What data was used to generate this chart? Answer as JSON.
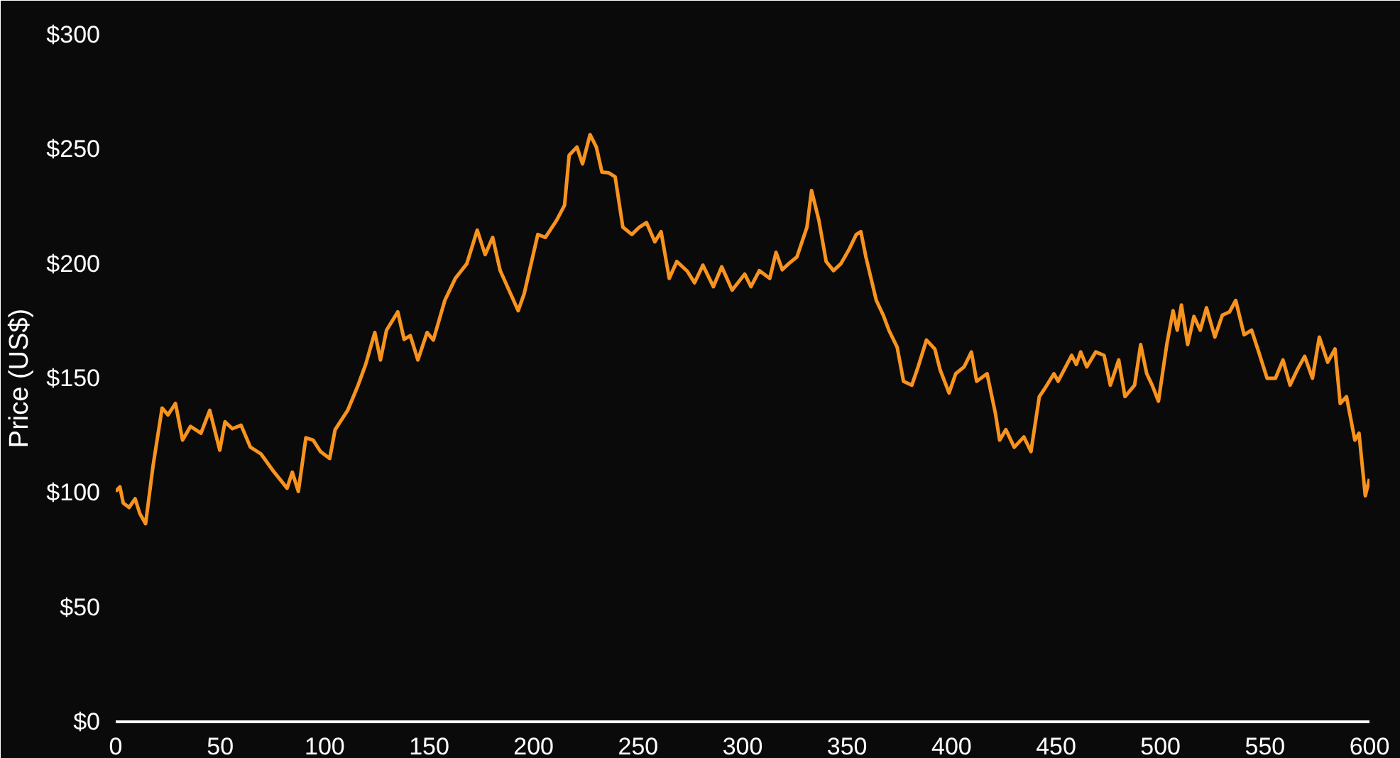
{
  "chart_data": {
    "type": "line",
    "ylabel": "Price (US$)",
    "xlim": [
      0,
      600
    ],
    "ylim": [
      0,
      300
    ],
    "xticks": [
      0,
      50,
      100,
      150,
      200,
      250,
      300,
      350,
      400,
      450,
      500,
      550,
      600
    ],
    "yticks": [
      {
        "value": 0,
        "label": "$0"
      },
      {
        "value": 50,
        "label": "$50"
      },
      {
        "value": 100,
        "label": "$100"
      },
      {
        "value": 150,
        "label": "$150"
      },
      {
        "value": 200,
        "label": "$200"
      },
      {
        "value": 250,
        "label": "$250"
      },
      {
        "value": 300,
        "label": "$300"
      }
    ],
    "grid": false,
    "marker": "none",
    "line_style": "solid",
    "x": [
      0,
      2,
      3.6,
      6.4,
      9.3,
      11.5,
      14.3,
      17.9,
      22.2,
      25,
      28.6,
      32,
      35.8,
      40.8,
      45,
      49.8,
      52.3,
      55.8,
      60,
      64.4,
      69.5,
      75,
      82,
      84.5,
      87.4,
      91,
      94.5,
      98,
      102.4,
      105,
      111,
      116,
      119.6,
      124,
      126.7,
      129.6,
      135,
      138,
      141,
      144.6,
      149,
      152,
      157.5,
      162.5,
      168,
      173,
      176.8,
      180.4,
      184,
      192.6,
      195.5,
      202,
      205.6,
      211,
      214.8,
      217,
      220.7,
      223.4,
      227,
      230,
      232.7,
      236,
      239,
      242.7,
      247,
      250.6,
      254,
      258,
      261,
      264.9,
      268.5,
      273.5,
      277,
      281,
      286,
      290,
      295,
      301,
      304,
      308,
      313,
      316,
      319,
      322,
      326,
      330.8,
      333,
      336.5,
      340,
      343.5,
      347,
      350.8,
      354.4,
      356.6,
      359,
      364,
      367.3,
      370,
      374,
      377,
      381,
      384,
      388,
      392,
      394.5,
      398.8,
      402,
      406,
      409.5,
      412,
      417,
      421,
      423,
      426,
      430,
      434.6,
      438,
      442,
      444.6,
      449,
      451,
      454.6,
      457.5,
      459.7,
      461.8,
      464.7,
      469,
      473,
      476,
      480,
      483,
      487.6,
      490.5,
      493.4,
      496,
      499,
      503,
      506,
      508,
      510,
      513,
      516,
      519,
      522,
      526,
      529.6,
      533,
      536,
      540,
      543.6,
      547,
      551,
      555,
      558.6,
      562,
      565.6,
      569,
      572.7,
      576,
      580,
      583.5,
      586,
      589,
      593,
      595,
      598,
      600
    ],
    "series": [
      {
        "color": "#f7931e",
        "values": [
          100.6,
          102.6,
          95.5,
          93.6,
          97.4,
          91,
          86.5,
          112,
          137,
          134,
          139,
          123,
          129,
          126,
          136,
          118.6,
          131,
          128,
          129.5,
          120,
          117,
          110,
          102,
          109,
          100.6,
          124,
          123,
          118,
          115,
          127.6,
          136,
          147,
          156,
          170,
          158,
          171,
          179,
          167,
          168.6,
          158,
          170,
          166.7,
          184,
          193.6,
          200,
          214.7,
          204,
          211.5,
          197,
          179.5,
          187,
          212.8,
          211.5,
          219,
          225.6,
          247.4,
          251,
          243.6,
          256.4,
          251,
          240,
          239.7,
          238,
          216,
          212.8,
          216,
          218,
          209.6,
          214,
          193.6,
          201,
          196.8,
          191.7,
          199.4,
          190,
          198.7,
          188.5,
          195.5,
          190,
          197,
          193.6,
          205,
          197.4,
          200,
          203,
          216,
          232,
          219,
          201,
          197,
          200,
          206,
          212.8,
          214,
          203,
          184,
          177.6,
          171,
          163.5,
          148.7,
          147,
          155,
          166.7,
          162.8,
          153.8,
          143.6,
          152,
          155,
          161.5,
          148.7,
          152,
          134.6,
          123,
          127.6,
          119.9,
          124.4,
          118,
          142,
          145.5,
          152,
          148.7,
          155,
          160,
          156,
          161.5,
          155,
          161.5,
          160,
          147,
          158,
          142,
          147,
          164.7,
          152,
          147,
          140,
          164.7,
          179.5,
          171,
          182,
          164.7,
          177,
          171,
          180.8,
          168,
          177.6,
          179,
          184,
          169,
          171,
          161.5,
          150,
          150,
          158,
          147,
          154,
          159.6,
          150,
          168,
          157,
          162.8,
          139,
          142,
          123,
          126,
          98.7,
          106
        ]
      }
    ]
  }
}
